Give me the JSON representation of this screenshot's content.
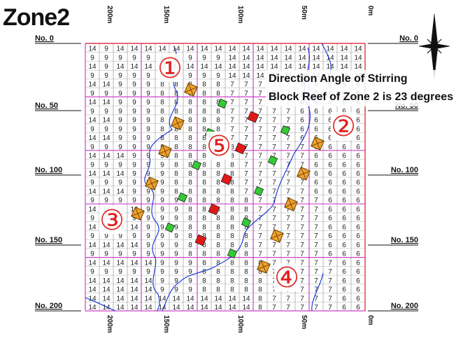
{
  "title": "Zone2",
  "note": {
    "line1": "Direction Angle of Stirring",
    "line2": "Block Reef of Zone 2 is 23 degrees"
  },
  "top_ticks": [
    "200m",
    "150m",
    "100m",
    "50m",
    "0m"
  ],
  "bottom_ticks": [
    "200m",
    "150m",
    "100m",
    "50m",
    "0m"
  ],
  "row_labels": [
    "No. 0",
    "No. 50",
    "No. 100",
    "No. 150",
    "No. 200"
  ],
  "cell_values": [
    "14",
    "9",
    "8",
    "7",
    "6"
  ],
  "zone_markers": [
    "①",
    "②",
    "③",
    "④",
    "⑤"
  ],
  "north_icon": "north-arrow-icon",
  "colors": {
    "orange_block": "#f0a030",
    "green_block": "#33cc33",
    "red_block": "#e01818",
    "zone_marker": "#e02020",
    "blue_line": "#1030d0",
    "grid_magenta": "#cc44cc",
    "grid_red": "#e03030"
  }
}
